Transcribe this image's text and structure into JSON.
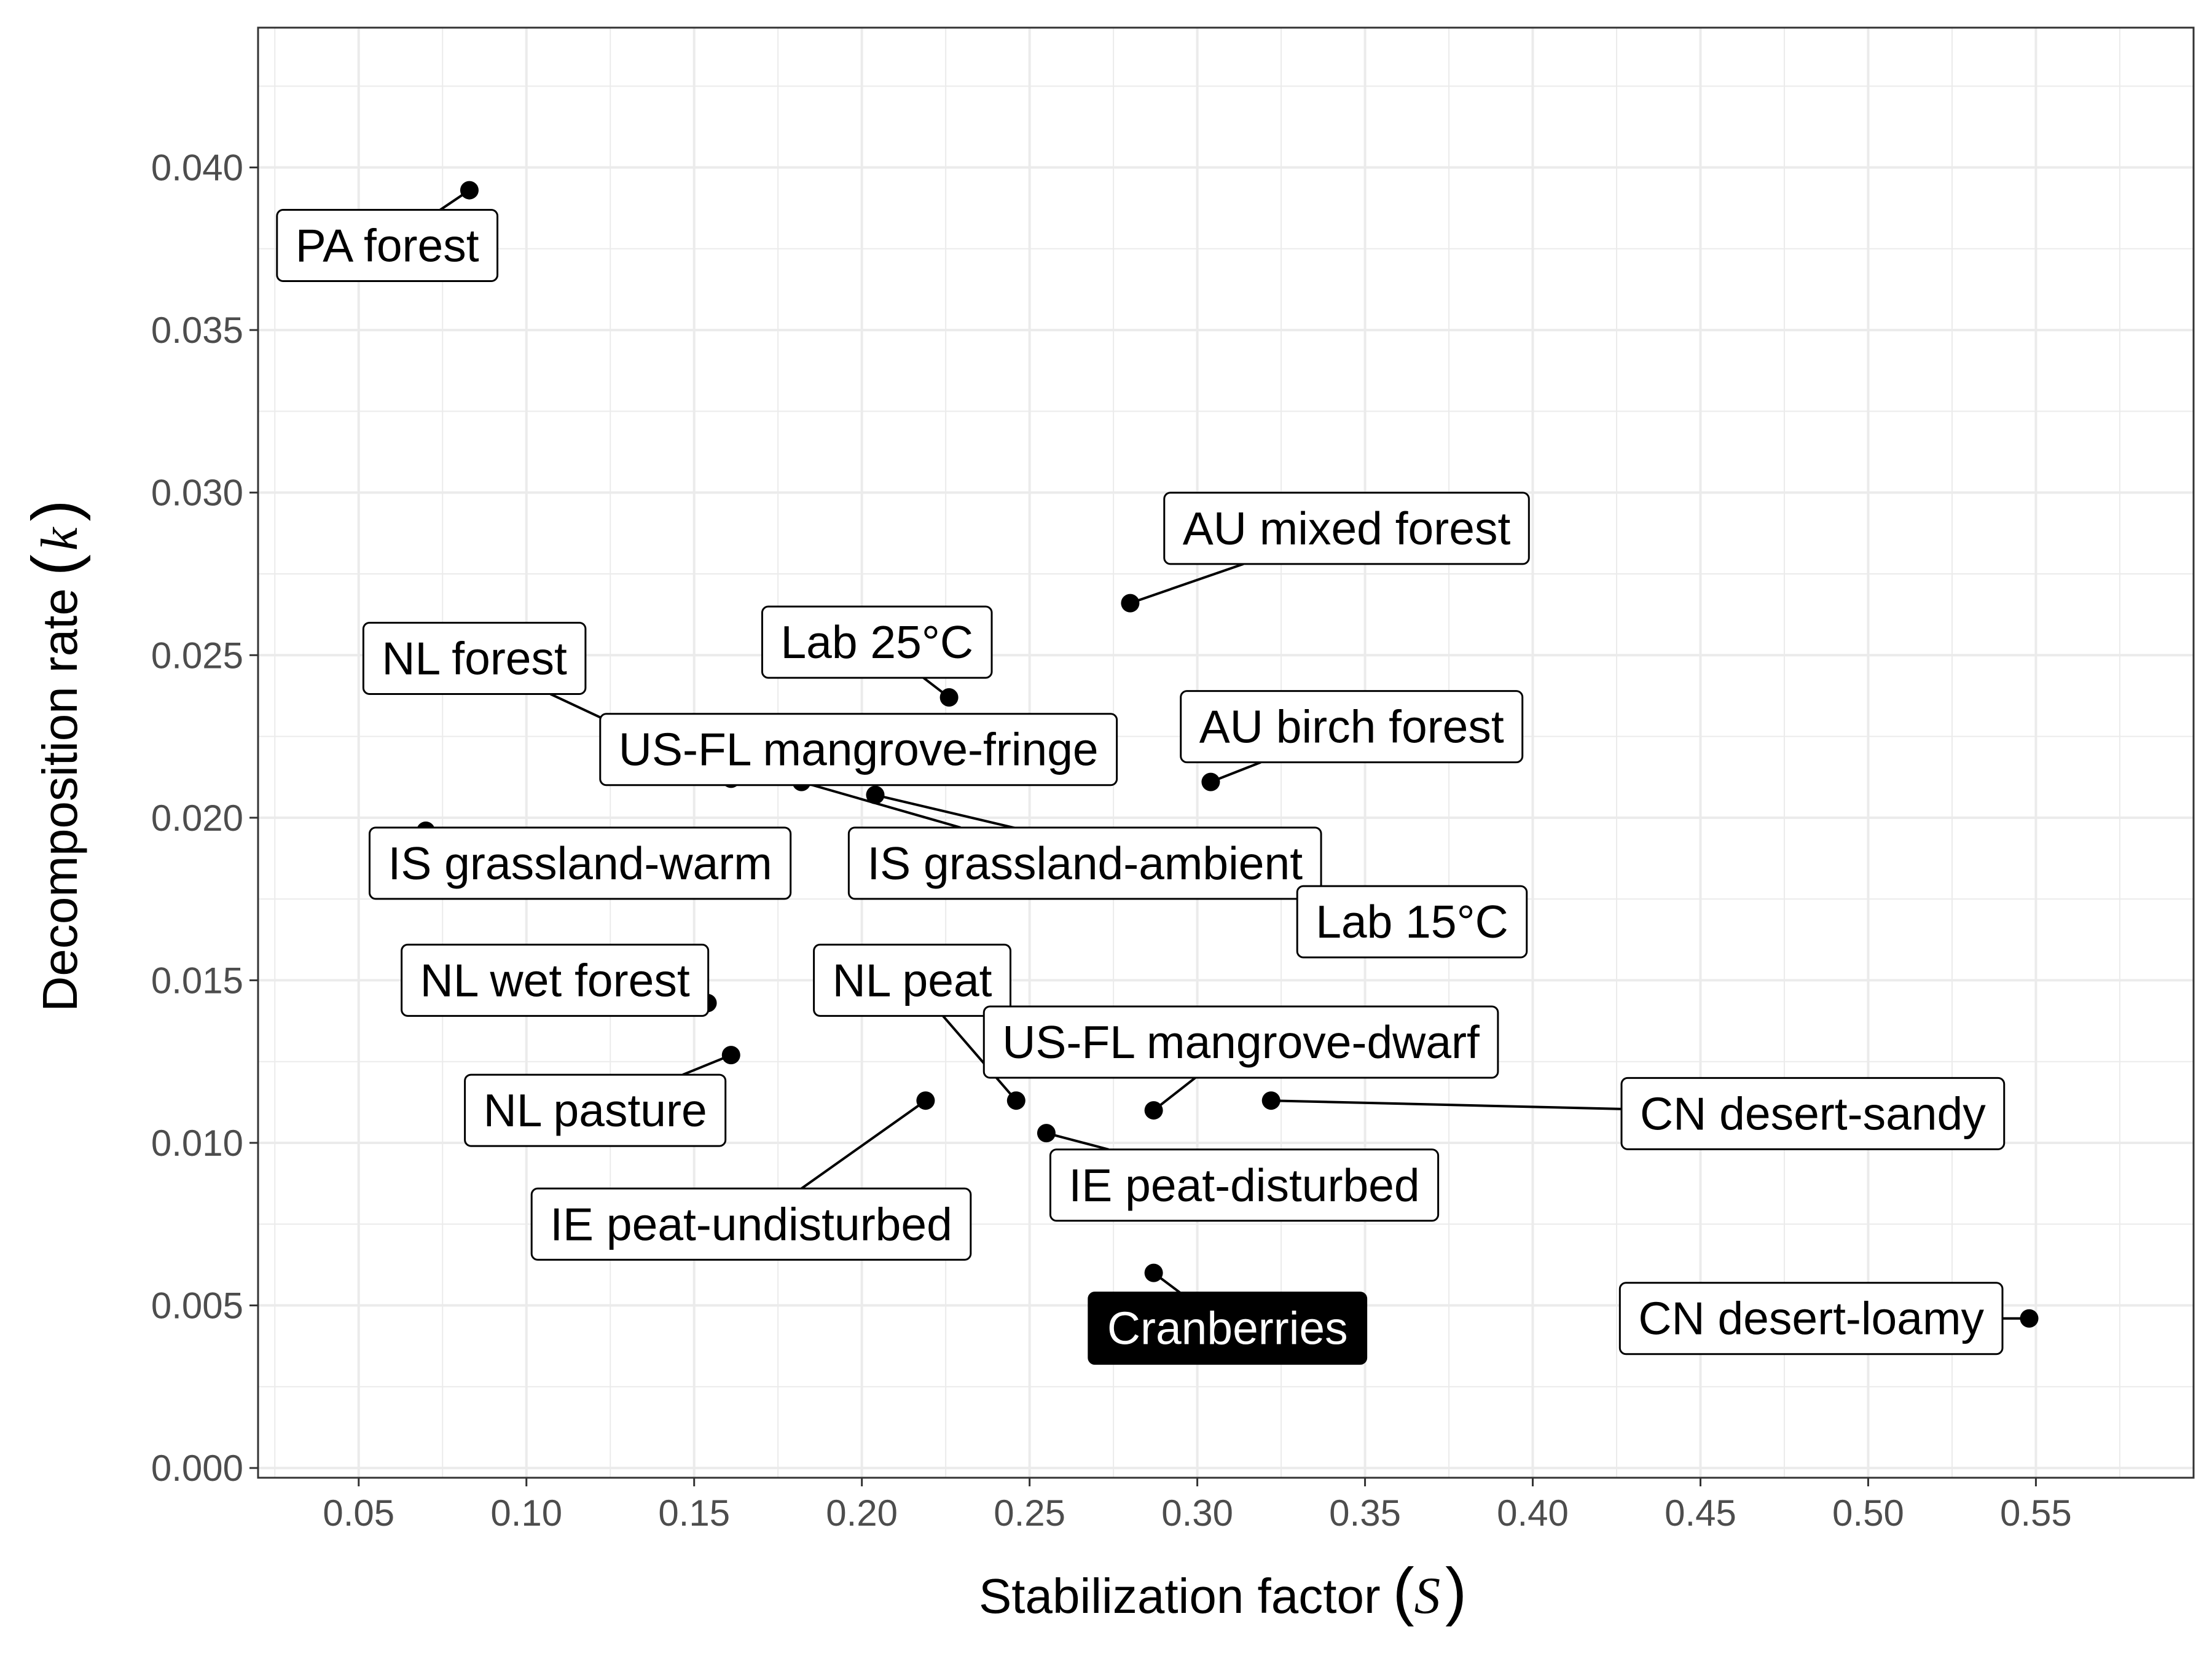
{
  "chart_data": {
    "type": "scatter",
    "xlabel": "Stabilization factor",
    "xlabel_symbol": "S",
    "ylabel": "Decomposition rate",
    "ylabel_symbol": "k",
    "xlim": [
      0.02,
      0.597
    ],
    "ylim": [
      -0.0003,
      0.0443
    ],
    "xticks": [
      0.05,
      0.1,
      0.15,
      0.2,
      0.25,
      0.3,
      0.35,
      0.4,
      0.45,
      0.5,
      0.55
    ],
    "xtick_labels": [
      "0.05",
      "0.10",
      "0.15",
      "0.20",
      "0.25",
      "0.30",
      "0.35",
      "0.40",
      "0.45",
      "0.50",
      "0.55"
    ],
    "yticks": [
      0.0,
      0.005,
      0.01,
      0.015,
      0.02,
      0.025,
      0.03,
      0.035,
      0.04
    ],
    "ytick_labels": [
      "0.000",
      "0.005",
      "0.010",
      "0.015",
      "0.020",
      "0.025",
      "0.030",
      "0.035",
      "0.040"
    ],
    "grid": true,
    "colors": {
      "point": "#000000",
      "grid": "#ebebeb",
      "panel_border": "#333333",
      "highlight_fill": "#000000",
      "highlight_text": "#ffffff"
    },
    "points": [
      {
        "label": "PA forest",
        "x": 0.083,
        "y": 0.0393,
        "label_x": 0.0585,
        "label_y": 0.0376
      },
      {
        "label": "AU mixed forest",
        "x": 0.28,
        "y": 0.0266,
        "label_x": 0.3445,
        "label_y": 0.0289
      },
      {
        "label": "Lab 25°C",
        "x": 0.226,
        "y": 0.0237,
        "label_x": 0.2045,
        "label_y": 0.0254
      },
      {
        "label": "NL forest",
        "x": 0.161,
        "y": 0.0212,
        "label_x": 0.0845,
        "label_y": 0.0249
      },
      {
        "label": "US-FL mangrove-fringe",
        "x": 0.204,
        "y": 0.0229,
        "label_x": 0.199,
        "label_y": 0.0221
      },
      {
        "label": "AU birch forest",
        "x": 0.304,
        "y": 0.0211,
        "label_x": 0.346,
        "label_y": 0.0228
      },
      {
        "label": "IS grassland-warm",
        "x": 0.07,
        "y": 0.0196,
        "label_x": 0.116,
        "label_y": 0.0186
      },
      {
        "label": "IS grassland-ambient",
        "x": 0.182,
        "y": 0.0211,
        "label_x": 0.2665,
        "label_y": 0.0186
      },
      {
        "label": "Lab 15°C",
        "x": 0.204,
        "y": 0.0207,
        "label_x": 0.364,
        "label_y": 0.0168
      },
      {
        "label": "NL wet forest",
        "x": 0.154,
        "y": 0.0143,
        "label_x": 0.1085,
        "label_y": 0.015
      },
      {
        "label": "NL peat",
        "x": 0.246,
        "y": 0.0113,
        "label_x": 0.215,
        "label_y": 0.015
      },
      {
        "label": "NL pasture",
        "x": 0.161,
        "y": 0.0127,
        "label_x": 0.1205,
        "label_y": 0.011
      },
      {
        "label": "US-FL mangrove-dwarf",
        "x": 0.287,
        "y": 0.011,
        "label_x": 0.313,
        "label_y": 0.0131
      },
      {
        "label": "CN desert-sandy",
        "x": 0.322,
        "y": 0.0113,
        "label_x": 0.4835,
        "label_y": 0.0109
      },
      {
        "label": "IE peat-undisturbed",
        "x": 0.219,
        "y": 0.0113,
        "label_x": 0.167,
        "label_y": 0.0075
      },
      {
        "label": "IE peat-disturbed",
        "x": 0.255,
        "y": 0.0103,
        "label_x": 0.314,
        "label_y": 0.0087
      },
      {
        "label": "Cranberries",
        "x": 0.287,
        "y": 0.006,
        "label_x": 0.309,
        "label_y": 0.0043,
        "highlight": true
      },
      {
        "label": "CN desert-loamy",
        "x": 0.548,
        "y": 0.0046,
        "label_x": 0.483,
        "label_y": 0.0046
      }
    ]
  }
}
